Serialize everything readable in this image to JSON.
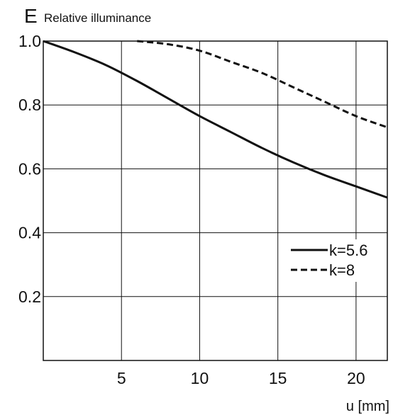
{
  "chart_data": {
    "type": "line",
    "title": "",
    "ylabel_letter": "E",
    "ylabel": "Relative illuminance",
    "xlabel": "u [mm]",
    "xlim": [
      0,
      22
    ],
    "ylim": [
      0,
      1.0
    ],
    "grid": true,
    "xticks": [
      5,
      10,
      15,
      20
    ],
    "xtick_labels": [
      "5",
      "10",
      "15",
      "20"
    ],
    "yticks": [
      0.2,
      0.4,
      0.6,
      0.8,
      1.0
    ],
    "ytick_labels": [
      "0.2",
      "0.4",
      "0.6",
      "0.8",
      "1.0"
    ],
    "legend_position": "right",
    "series": [
      {
        "name": "k=5.6",
        "style": "solid",
        "color": "#111111",
        "x": [
          0,
          2,
          4,
          6,
          8,
          10,
          12,
          14,
          16,
          18,
          20,
          22
        ],
        "y": [
          1.0,
          0.965,
          0.925,
          0.875,
          0.82,
          0.765,
          0.715,
          0.665,
          0.62,
          0.58,
          0.545,
          0.51
        ]
      },
      {
        "name": "k=8",
        "style": "dashed",
        "color": "#111111",
        "x": [
          6,
          8,
          10,
          12,
          14,
          16,
          18,
          20,
          22
        ],
        "y": [
          1.0,
          0.99,
          0.97,
          0.935,
          0.9,
          0.855,
          0.81,
          0.765,
          0.73
        ]
      }
    ]
  }
}
